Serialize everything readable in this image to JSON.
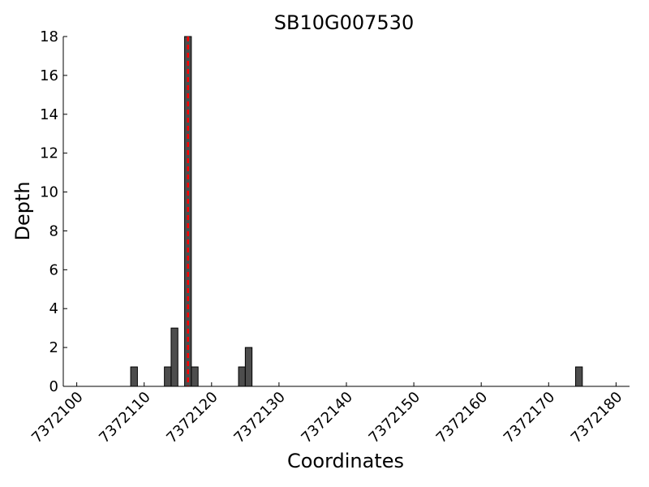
{
  "chart_data": {
    "type": "bar",
    "title": "SB10G007530",
    "xlabel": "Coordinates",
    "ylabel": "Depth",
    "xlim": [
      7372098,
      7372182
    ],
    "ylim": [
      0,
      18
    ],
    "xticks": [
      7372100,
      7372110,
      7372120,
      7372130,
      7372140,
      7372150,
      7372160,
      7372170,
      7372180
    ],
    "xtick_labels": [
      "7372100",
      "7372110",
      "7372120",
      "7372130",
      "7372140",
      "7372150",
      "7372160",
      "7372170",
      "7372180"
    ],
    "yticks": [
      0,
      2,
      4,
      6,
      8,
      10,
      12,
      14,
      16,
      18
    ],
    "ytick_labels": [
      "0",
      "2",
      "4",
      "6",
      "8",
      "10",
      "12",
      "14",
      "16",
      "18"
    ],
    "bar_width": 1,
    "x": [
      7372108,
      7372113,
      7372114,
      7372116,
      7372117,
      7372124,
      7372125,
      7372174
    ],
    "values": [
      1,
      1,
      3,
      18,
      1,
      1,
      2,
      1
    ],
    "reference_line": {
      "x": 7372116.5,
      "style": "dashed",
      "color": "#ff0000"
    },
    "bar_color": "#4d4d4d",
    "bar_edge_color": "#000000",
    "grid": false
  }
}
